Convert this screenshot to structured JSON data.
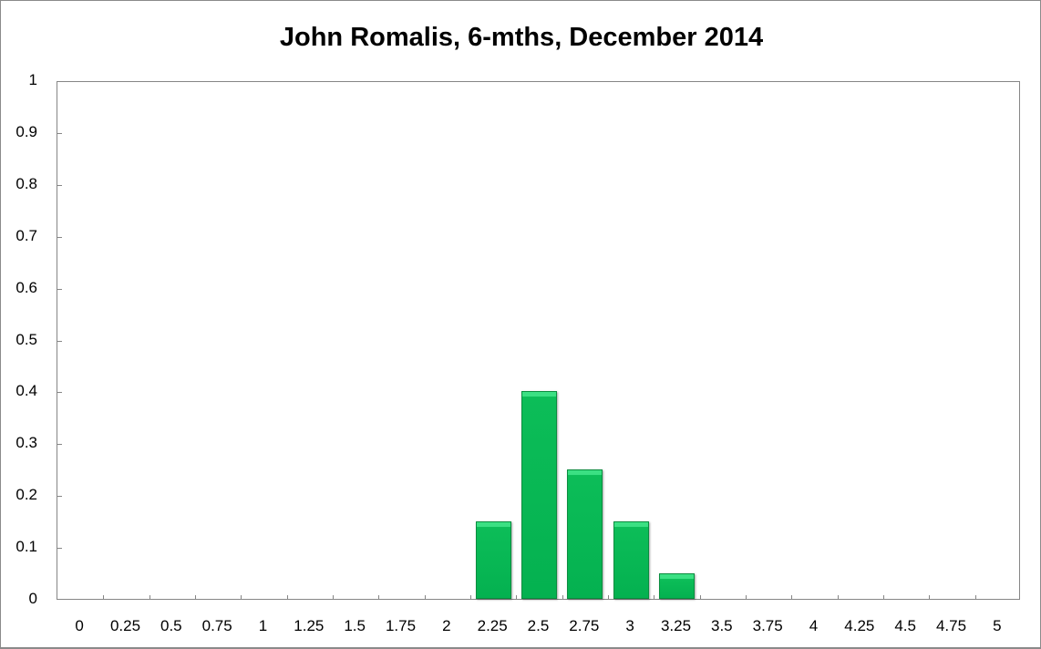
{
  "chart_data": {
    "type": "bar",
    "title": "John Romalis, 6-mths, December 2014",
    "xlabel": "",
    "ylabel": "",
    "ylim": [
      0,
      1
    ],
    "yticks": [
      "0",
      "0.1",
      "0.2",
      "0.3",
      "0.4",
      "0.5",
      "0.6",
      "0.7",
      "0.8",
      "0.9",
      "1"
    ],
    "categories": [
      "0",
      "0.25",
      "0.5",
      "0.75",
      "1",
      "1.25",
      "1.5",
      "1.75",
      "2",
      "2.25",
      "2.5",
      "2.75",
      "3",
      "3.25",
      "3.5",
      "3.75",
      "4",
      "4.25",
      "4.5",
      "4.75",
      "5"
    ],
    "values": [
      0,
      0,
      0,
      0,
      0,
      0,
      0,
      0,
      0,
      0.15,
      0.4,
      0.25,
      0.15,
      0.05,
      0,
      0,
      0,
      0,
      0,
      0,
      0
    ],
    "grid": false,
    "legend": "none",
    "bar_color": "#04b150"
  }
}
